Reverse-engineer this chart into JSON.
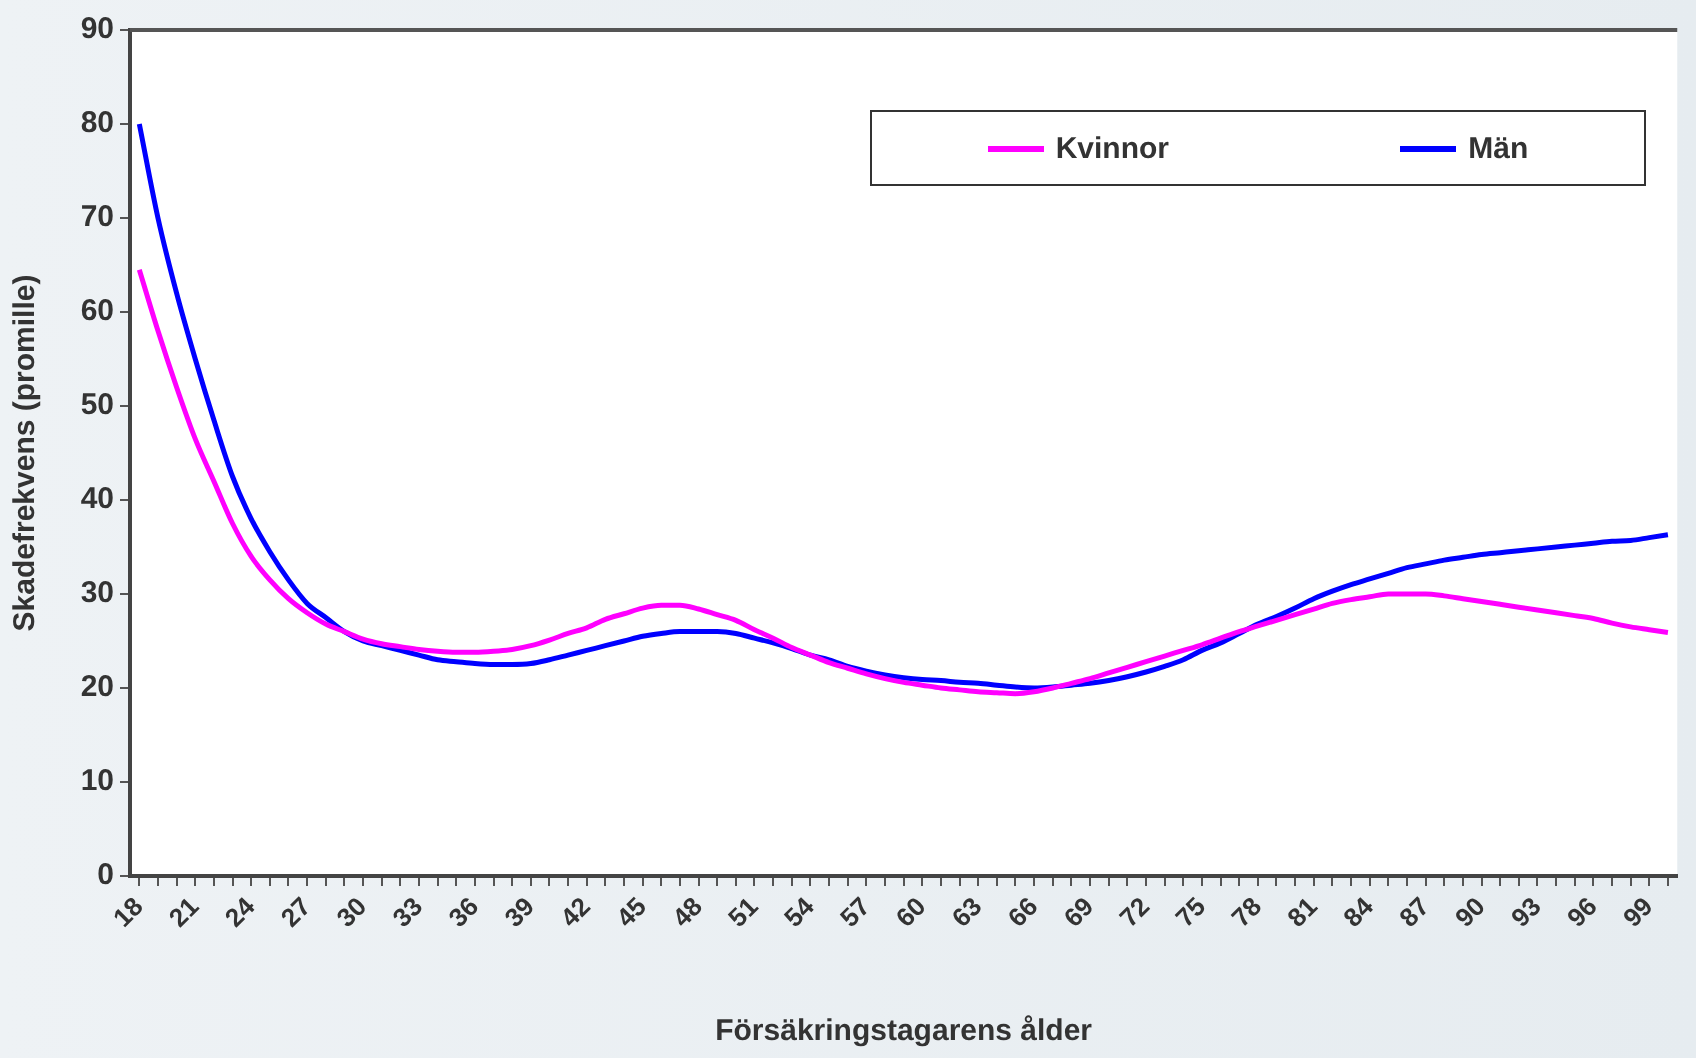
{
  "chart_data": {
    "type": "line",
    "xlabel": "Försäkringstagarens ålder",
    "ylabel": "Skadefrekvens (promille)",
    "categories": [
      "18",
      null,
      null,
      "21",
      null,
      null,
      "24",
      null,
      null,
      "27",
      null,
      null,
      "30",
      null,
      null,
      "33",
      null,
      null,
      "36",
      null,
      null,
      "39",
      null,
      null,
      "42",
      null,
      null,
      "45",
      null,
      null,
      "48",
      null,
      null,
      "51",
      null,
      null,
      "54",
      null,
      null,
      "57",
      null,
      null,
      "60",
      null,
      null,
      "63",
      null,
      null,
      "66",
      null,
      null,
      "69",
      null,
      null,
      "72",
      null,
      null,
      "75",
      null,
      null,
      "78",
      null,
      null,
      "81",
      null,
      null,
      "84",
      null,
      null,
      "87",
      null,
      null,
      "90",
      null,
      null,
      "93",
      null,
      null,
      "96",
      null,
      null,
      "99",
      null
    ],
    "series": [
      {
        "name": "Kvinnor",
        "color": "#ff00ff",
        "values": [
          64.5,
          58,
          52,
          46.5,
          42,
          37.5,
          34,
          31.5,
          29.5,
          28,
          26.8,
          26,
          25.2,
          24.7,
          24.4,
          24.1,
          23.9,
          23.8,
          23.8,
          23.9,
          24.1,
          24.5,
          25.1,
          25.8,
          26.4,
          27.3,
          27.9,
          28.5,
          28.8,
          28.8,
          28.4,
          27.8,
          27.2,
          26.2,
          25.3,
          24.3,
          23.5,
          22.7,
          22.1,
          21.5,
          21,
          20.6,
          20.3,
          20,
          19.8,
          19.6,
          19.5,
          19.4,
          19.6,
          20,
          20.5,
          21,
          21.6,
          22.2,
          22.8,
          23.4,
          24,
          24.6,
          25.3,
          26,
          26.6,
          27.2,
          27.8,
          28.4,
          29,
          29.4,
          29.7,
          30,
          30,
          30,
          29.8,
          29.5,
          29.2,
          28.9,
          28.6,
          28.3,
          28,
          27.7,
          27.4,
          26.9,
          26.5,
          26.2,
          25.9
        ]
      },
      {
        "name": "Män",
        "color": "#0000ff",
        "values": [
          80,
          70,
          62,
          55,
          48.5,
          42.5,
          38,
          34.5,
          31.5,
          29,
          27.5,
          26,
          25,
          24.5,
          24,
          23.5,
          23,
          22.8,
          22.6,
          22.5,
          22.5,
          22.6,
          23,
          23.5,
          24,
          24.5,
          25,
          25.5,
          25.8,
          26,
          26,
          26,
          25.8,
          25.3,
          24.8,
          24.2,
          23.5,
          23,
          22.3,
          21.8,
          21.4,
          21.1,
          20.9,
          20.8,
          20.6,
          20.5,
          20.3,
          20.1,
          20,
          20.1,
          20.3,
          20.5,
          20.8,
          21.2,
          21.7,
          22.3,
          23,
          24,
          24.8,
          25.8,
          26.8,
          27.6,
          28.5,
          29.5,
          30.3,
          31,
          31.6,
          32.2,
          32.8,
          33.2,
          33.6,
          33.9,
          34.2,
          34.4,
          34.6,
          34.8,
          35,
          35.2,
          35.4,
          35.6,
          35.7,
          36,
          36.3
        ]
      }
    ],
    "ylim": [
      0,
      90
    ],
    "yticks": [
      0,
      10,
      20,
      30,
      40,
      50,
      60,
      70,
      80,
      90
    ],
    "grid": false,
    "legend": "top right",
    "marker": "none",
    "line_style": "solid"
  }
}
